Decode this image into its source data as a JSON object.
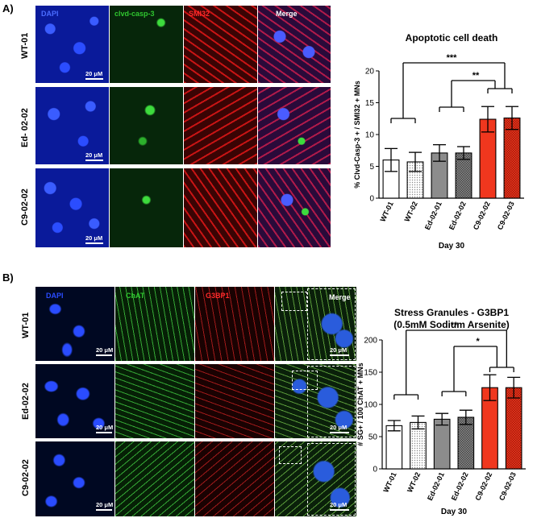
{
  "panel_a": {
    "letter": "A)",
    "rows": [
      "WT-01",
      "Ed- 02-02",
      "C9-02-02"
    ],
    "channels": [
      "DAPI",
      "clvd-casp-3",
      "SMI32",
      "Merge"
    ],
    "scale_label": "20 μM"
  },
  "panel_b": {
    "letter": "B)",
    "rows": [
      "WT-01",
      "Ed-02-02",
      "C9-02-02"
    ],
    "channels": [
      "DAPI",
      "ChAT",
      "G3BP1",
      "Merge"
    ],
    "scale_label": "20 μM"
  },
  "colors": {
    "dapi": "#1a3cff",
    "green": "#2fc62f",
    "red": "#ff2a2a",
    "bar_white": "#ffffff",
    "bar_wt02": "#e6e6e6",
    "bar_ed": "#8c8c8c",
    "bar_c9": "#f0371e"
  },
  "chart_data": [
    {
      "type": "bar",
      "title": "Apoptotic cell death",
      "xlabel": "Day 30",
      "ylabel": "% Clvd-Casp-3 + / SMI32 + MNs",
      "categories": [
        "WT-01",
        "WT-02",
        "Ed-02-01",
        "Ed-02-02",
        "C9-02-02",
        "C9-02-03"
      ],
      "values": [
        6.0,
        5.7,
        7.1,
        7.1,
        12.4,
        12.6
      ],
      "errors": [
        1.8,
        1.5,
        1.3,
        1.0,
        2.0,
        1.8
      ],
      "ylim": [
        0,
        20
      ],
      "yticks": [
        0,
        5,
        10,
        15,
        20
      ],
      "significance": [
        "***",
        "**"
      ]
    },
    {
      "type": "bar",
      "title": "Stress Granules - G3BP1",
      "subtitle": "(0.5mM Sodium Arsenite)",
      "xlabel": "Day 30",
      "ylabel": "# SG+ / 100 ChAT + MNs",
      "categories": [
        "WT-01",
        "WT-02",
        "Ed-02-01",
        "Ed-02-02",
        "C9-02-02",
        "C9-02-03"
      ],
      "values": [
        67,
        72,
        77,
        80,
        126,
        126
      ],
      "errors": [
        8,
        10,
        9,
        11,
        20,
        16
      ],
      "ylim": [
        0,
        200
      ],
      "yticks": [
        0,
        50,
        100,
        150,
        200
      ],
      "significance": [
        "**",
        "*"
      ]
    }
  ]
}
